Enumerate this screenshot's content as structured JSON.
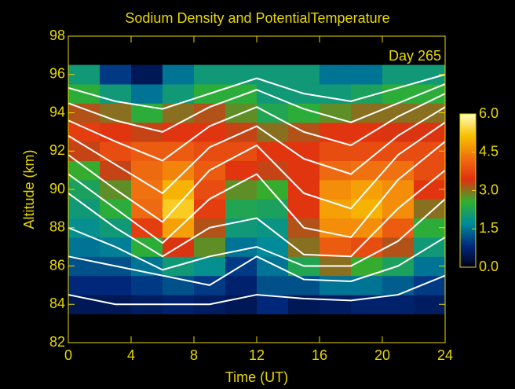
{
  "chart_data": {
    "type": "heatmap",
    "title": "Sodium Density and PotentialTemperature",
    "annotation": "Day 265",
    "x_label": "Time (UT)",
    "y_label": "Altitude (km)",
    "xlim": [
      0,
      24
    ],
    "xticks": [
      0,
      4,
      8,
      12,
      16,
      20,
      24
    ],
    "ylim": [
      82,
      98
    ],
    "yticks": [
      82,
      84,
      86,
      88,
      90,
      92,
      94,
      96,
      98
    ],
    "x": [
      1,
      3,
      5,
      7,
      9,
      11,
      13,
      15,
      17,
      19,
      21,
      23
    ],
    "y": [
      84,
      85,
      86,
      87,
      88,
      89,
      90,
      91,
      92,
      93,
      94,
      95,
      96
    ],
    "z": [
      [
        0.5,
        0.5,
        0.6,
        0.7,
        0.6,
        0.5,
        0.8,
        0.5,
        0.6,
        0.7,
        0.7,
        0.6
      ],
      [
        0.8,
        0.8,
        1.0,
        1.2,
        1.0,
        0.7,
        1.2,
        1.2,
        1.5,
        1.5,
        1.3,
        1.0
      ],
      [
        1.2,
        1.2,
        1.5,
        2.0,
        1.8,
        1.0,
        1.5,
        2.3,
        3.0,
        2.6,
        2.2,
        1.5
      ],
      [
        1.5,
        1.6,
        2.5,
        3.4,
        2.8,
        1.5,
        1.7,
        3.0,
        4.0,
        3.8,
        3.2,
        2.0
      ],
      [
        1.8,
        2.0,
        3.6,
        4.8,
        3.2,
        2.0,
        1.9,
        3.2,
        4.6,
        4.6,
        4.0,
        2.5
      ],
      [
        2.0,
        2.5,
        4.2,
        5.3,
        3.6,
        2.3,
        2.2,
        3.5,
        4.8,
        5.0,
        4.6,
        3.0
      ],
      [
        2.2,
        2.8,
        4.3,
        5.0,
        3.8,
        2.8,
        2.6,
        3.5,
        4.6,
        4.8,
        4.6,
        3.5
      ],
      [
        2.6,
        3.3,
        4.2,
        4.5,
        4.0,
        3.5,
        3.3,
        3.5,
        4.2,
        4.3,
        4.3,
        3.8
      ],
      [
        3.3,
        3.8,
        4.0,
        4.0,
        3.8,
        3.8,
        3.5,
        3.5,
        3.8,
        3.8,
        3.8,
        3.8
      ],
      [
        3.6,
        3.5,
        3.3,
        3.5,
        3.5,
        3.3,
        3.0,
        3.2,
        3.5,
        3.5,
        3.4,
        3.4
      ],
      [
        3.2,
        3.0,
        2.5,
        3.0,
        3.2,
        2.8,
        2.3,
        2.5,
        2.8,
        3.0,
        3.0,
        3.0
      ],
      [
        2.5,
        2.0,
        1.5,
        2.0,
        2.5,
        2.5,
        2.0,
        2.0,
        2.0,
        2.2,
        2.5,
        2.5
      ],
      [
        2.0,
        1.0,
        0.5,
        1.5,
        2.0,
        2.0,
        2.0,
        2.0,
        1.5,
        1.5,
        2.0,
        2.0
      ]
    ],
    "zlim": [
      0,
      6
    ],
    "zticks": [
      {
        "value": 0,
        "label": "0.0"
      },
      {
        "value": 1.5,
        "label": "1.5"
      },
      {
        "value": 3,
        "label": "3.0"
      },
      {
        "value": 4.5,
        "label": "4.5"
      },
      {
        "value": 6,
        "label": "6.0"
      }
    ],
    "colormap": [
      "#000018",
      "#002a80",
      "#008c9a",
      "#30b030",
      "#e03010",
      "#f07010",
      "#f8c000",
      "#ffffc0"
    ],
    "contour_color": "#ffffff",
    "contour_x": [
      0,
      3,
      6,
      9,
      12,
      15,
      18,
      21,
      24
    ],
    "contours": [
      [
        95.3,
        94.6,
        94.2,
        95,
        95.8,
        95,
        94.6,
        95.3,
        96
      ],
      [
        94.5,
        93.6,
        93,
        94.3,
        95.2,
        94.2,
        93.5,
        94.5,
        95.5
      ],
      [
        93.6,
        92.5,
        91.5,
        93.3,
        94.3,
        93,
        92.3,
        93.8,
        95
      ],
      [
        92.8,
        91.3,
        89.8,
        92.2,
        93.3,
        91.6,
        90.8,
        92.8,
        94.3
      ],
      [
        91.8,
        90,
        88.3,
        91,
        92.3,
        89.8,
        89,
        91.8,
        93.5
      ],
      [
        90.8,
        89,
        87.2,
        89.5,
        90.8,
        88,
        87.5,
        90.5,
        92.5
      ],
      [
        89.8,
        88,
        86.5,
        88,
        88.5,
        86.6,
        86.5,
        89,
        91
      ],
      [
        88,
        87,
        85.8,
        86.5,
        87,
        86,
        86,
        87.3,
        89.5
      ],
      [
        86.5,
        86,
        85.5,
        85,
        86.5,
        85.3,
        85.2,
        86,
        87.5
      ],
      [
        84.5,
        84,
        84,
        84,
        84.5,
        84.3,
        84.2,
        84.5,
        85.5
      ]
    ]
  }
}
